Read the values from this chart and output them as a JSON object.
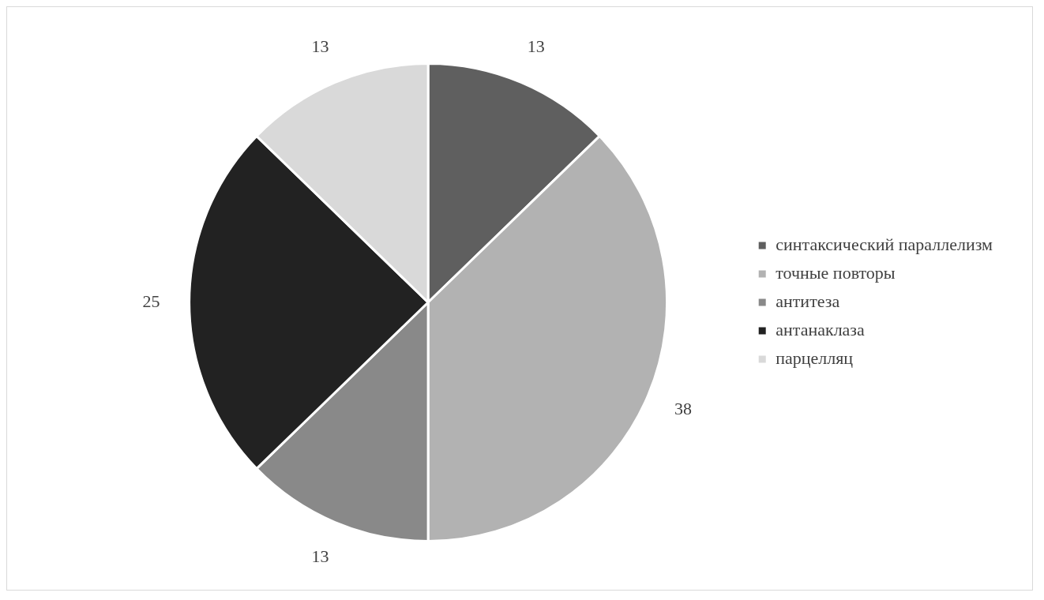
{
  "chart_data": {
    "type": "pie",
    "categories": [
      "синтаксический параллелизм",
      "точные повторы",
      "антитеза",
      "антанаклаза",
      "парцелляц"
    ],
    "values": [
      13,
      38,
      13,
      25,
      13
    ],
    "colors": [
      "#5f5f5f",
      "#b2b2b2",
      "#898989",
      "#222222",
      "#d9d9d9"
    ],
    "data_labels": true,
    "legend": "right"
  }
}
